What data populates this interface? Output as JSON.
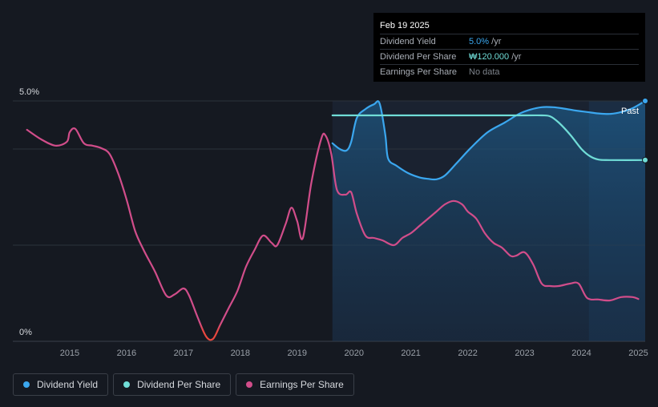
{
  "tooltip": {
    "date": "Feb 19 2025",
    "rows": [
      {
        "label": "Dividend Yield",
        "value": "5.0%",
        "unit": " /yr"
      },
      {
        "label": "Dividend Per Share",
        "value": "₩120.000",
        "unit": " /yr"
      },
      {
        "label": "Earnings Per Share",
        "value": "No data",
        "unit": ""
      }
    ]
  },
  "legend": [
    {
      "label": "Dividend Yield",
      "color": "#3ba7ef"
    },
    {
      "label": "Dividend Per Share",
      "color": "#70ddd7"
    },
    {
      "label": "Earnings Per Share",
      "color": "#d14d8a"
    }
  ],
  "chart_data": {
    "type": "line",
    "y_top_label": "5.0%",
    "y_bottom_label": "0%",
    "past_label": "Past",
    "ylim": [
      0,
      5.0
    ],
    "xlim": [
      2014.0,
      2025.12
    ],
    "x_ticks": [
      "2015",
      "2016",
      "2017",
      "2018",
      "2019",
      "2020",
      "2021",
      "2022",
      "2023",
      "2024",
      "2025"
    ],
    "x_tick_values": [
      2015,
      2016,
      2017,
      2018,
      2019,
      2020,
      2021,
      2022,
      2023,
      2024,
      2025
    ],
    "dividend_start": 2019.62,
    "past_start": 2024.13,
    "series": [
      {
        "name": "Dividend Yield",
        "color": "#3ba7ef",
        "area": true,
        "x": [
          2019.62,
          2019.75,
          2019.87,
          2019.95,
          2020.05,
          2020.2,
          2020.35,
          2020.45,
          2020.55,
          2020.6,
          2020.75,
          2020.95,
          2021.15,
          2021.3,
          2021.45,
          2021.6,
          2021.8,
          2022.05,
          2022.35,
          2022.65,
          2022.9,
          2023.1,
          2023.3,
          2023.5,
          2023.7,
          2023.9,
          2024.1,
          2024.3,
          2024.5,
          2024.7,
          2024.9,
          2025.12
        ],
        "y": [
          4.12,
          4.0,
          3.97,
          4.15,
          4.65,
          4.83,
          4.93,
          4.95,
          4.3,
          3.8,
          3.65,
          3.5,
          3.41,
          3.38,
          3.37,
          3.45,
          3.7,
          4.02,
          4.35,
          4.55,
          4.73,
          4.82,
          4.87,
          4.87,
          4.84,
          4.8,
          4.77,
          4.74,
          4.73,
          4.77,
          4.85,
          5.0
        ]
      },
      {
        "name": "Dividend Per Share",
        "color": "#70ddd7",
        "x": [
          2019.62,
          2020.0,
          2021.0,
          2022.0,
          2023.0,
          2023.3,
          2023.45,
          2023.6,
          2023.8,
          2024.0,
          2024.15,
          2024.3,
          2024.5,
          2025.12
        ],
        "y": [
          4.7,
          4.7,
          4.7,
          4.7,
          4.7,
          4.7,
          4.68,
          4.55,
          4.3,
          4.0,
          3.85,
          3.78,
          3.77,
          3.77
        ]
      },
      {
        "name": "Earnings Per Share",
        "color": "#d14d8a",
        "x": [
          2014.25,
          2014.5,
          2014.75,
          2014.95,
          2015.0,
          2015.1,
          2015.25,
          2015.4,
          2015.55,
          2015.7,
          2015.85,
          2016.0,
          2016.15,
          2016.3,
          2016.5,
          2016.7,
          2016.85,
          2017.0,
          2017.1,
          2017.25,
          2017.4,
          2017.52,
          2017.65,
          2017.8,
          2017.95,
          2018.1,
          2018.25,
          2018.4,
          2018.55,
          2018.65,
          2018.8,
          2018.9,
          2019.0,
          2019.1,
          2019.25,
          2019.42,
          2019.5,
          2019.6,
          2019.7,
          2019.85,
          2019.95,
          2020.05,
          2020.2,
          2020.35,
          2020.5,
          2020.7,
          2020.85,
          2021.0,
          2021.15,
          2021.3,
          2021.45,
          2021.6,
          2021.75,
          2021.9,
          2022.0,
          2022.15,
          2022.3,
          2022.45,
          2022.6,
          2022.75,
          2022.85,
          2023.0,
          2023.15,
          2023.3,
          2023.45,
          2023.6,
          2023.8,
          2023.95,
          2024.1,
          2024.3,
          2024.5,
          2024.7,
          2024.9,
          2025.0
        ],
        "y": [
          4.4,
          4.2,
          4.07,
          4.15,
          4.35,
          4.42,
          4.12,
          4.07,
          4.02,
          3.9,
          3.5,
          2.95,
          2.3,
          1.9,
          1.45,
          0.95,
          0.98,
          1.1,
          0.95,
          0.5,
          0.1,
          0.05,
          0.35,
          0.7,
          1.05,
          1.55,
          1.9,
          2.2,
          2.05,
          2.0,
          2.45,
          2.78,
          2.5,
          2.15,
          3.3,
          4.2,
          4.28,
          3.9,
          3.15,
          3.05,
          3.1,
          2.65,
          2.2,
          2.15,
          2.1,
          2.0,
          2.15,
          2.25,
          2.4,
          2.55,
          2.7,
          2.85,
          2.92,
          2.85,
          2.7,
          2.55,
          2.25,
          2.05,
          1.95,
          1.78,
          1.78,
          1.85,
          1.6,
          1.2,
          1.15,
          1.15,
          1.2,
          1.2,
          0.9,
          0.87,
          0.85,
          0.92,
          0.92,
          0.88
        ]
      }
    ]
  }
}
